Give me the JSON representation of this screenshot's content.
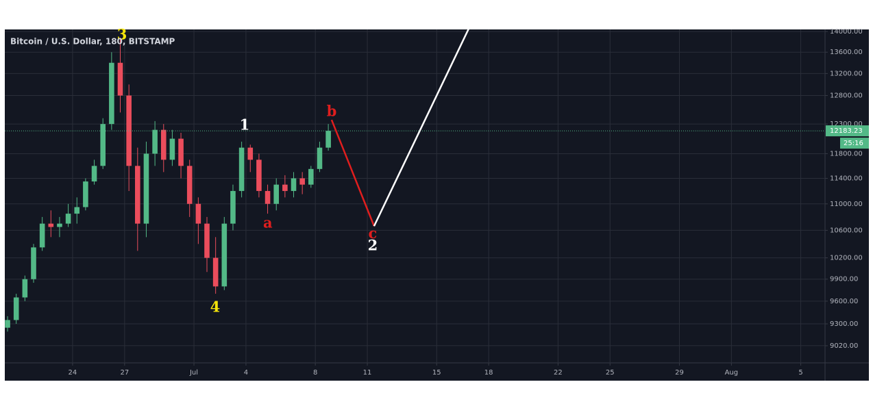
{
  "chart_data": {
    "type": "candlestick",
    "title": "Bitcoin / U.S. Dollar, 180, BITSTAMP",
    "log_scale": true,
    "grid": true,
    "up_color": "#53b987",
    "down_color": "#eb4d5c",
    "countdown": "25:16",
    "x": [
      20.25,
      20.75,
      21.25,
      21.75,
      22.25,
      22.75,
      23.25,
      23.75,
      24.25,
      24.75,
      25.25,
      25.75,
      26.25,
      26.75,
      27.25,
      27.75,
      28.25,
      28.75,
      29.25,
      29.75,
      30.25,
      30.75,
      31.25,
      31.75,
      32.25,
      32.75,
      33.25,
      33.75,
      34.25,
      34.75,
      35.25,
      35.75,
      36.25,
      36.75,
      37.25,
      37.75,
      38.25,
      38.75
    ],
    "open": [
      9250,
      9350,
      9650,
      9900,
      10350,
      10700,
      10650,
      10700,
      10850,
      10950,
      11350,
      11600,
      12300,
      13400,
      12800,
      11600,
      10700,
      11800,
      12200,
      11700,
      12050,
      11600,
      11000,
      10700,
      10200,
      9800,
      10700,
      11200,
      11900,
      11700,
      11200,
      11000,
      11300,
      11200,
      11400,
      11300,
      11550,
      11900
    ],
    "high": [
      9400,
      9700,
      9950,
      10400,
      10800,
      10900,
      10800,
      11000,
      11100,
      11400,
      11700,
      12400,
      13600,
      13880,
      13000,
      11900,
      12000,
      12350,
      12300,
      12200,
      12150,
      11700,
      11100,
      10800,
      10500,
      10800,
      11300,
      12000,
      11950,
      11800,
      11300,
      11400,
      11450,
      11500,
      11500,
      11600,
      12000,
      12300
    ],
    "low": [
      9200,
      9300,
      9600,
      9850,
      10300,
      10500,
      10500,
      10650,
      10700,
      10900,
      11300,
      11550,
      12200,
      12500,
      11200,
      10300,
      10500,
      11600,
      11500,
      11600,
      11400,
      10800,
      10400,
      10000,
      9700,
      9750,
      10600,
      11100,
      11500,
      11100,
      10850,
      10900,
      11100,
      11100,
      11150,
      11250,
      11500,
      11850
    ],
    "close": [
      9350,
      9650,
      9900,
      10350,
      10700,
      10650,
      10700,
      10850,
      10950,
      11350,
      11600,
      12300,
      13400,
      12800,
      11600,
      10700,
      11800,
      12200,
      11700,
      12050,
      11600,
      11000,
      10700,
      10200,
      9800,
      10700,
      11200,
      11900,
      11700,
      11200,
      11000,
      11300,
      11200,
      11400,
      11300,
      11550,
      11900,
      12183.23
    ],
    "xlim": [
      20.09,
      67.4
    ],
    "ylim": [
      8806,
      14040
    ],
    "xticks": [
      {
        "value": 24,
        "label": "24"
      },
      {
        "value": 27,
        "label": "27"
      },
      {
        "value": 31,
        "label": "Jul"
      },
      {
        "value": 34,
        "label": "4"
      },
      {
        "value": 38,
        "label": "8"
      },
      {
        "value": 41,
        "label": "11"
      },
      {
        "value": 45,
        "label": "15"
      },
      {
        "value": 48,
        "label": "18"
      },
      {
        "value": 52,
        "label": "22"
      },
      {
        "value": 55,
        "label": "25"
      },
      {
        "value": 59,
        "label": "29"
      },
      {
        "value": 62,
        "label": "Aug"
      },
      {
        "value": 66,
        "label": "5"
      }
    ],
    "yticks": [
      {
        "value": 14000,
        "label": "14000.00"
      },
      {
        "value": 13600,
        "label": "13600.00"
      },
      {
        "value": 13200,
        "label": "13200.00"
      },
      {
        "value": 12800,
        "label": "12800.00"
      },
      {
        "value": 12300,
        "label": "12300.00"
      },
      {
        "value": 11800,
        "label": "11800.00"
      },
      {
        "value": 11400,
        "label": "11400.00"
      },
      {
        "value": 11000,
        "label": "11000.00"
      },
      {
        "value": 10600,
        "label": "10600.00"
      },
      {
        "value": 10200,
        "label": "10200.00"
      },
      {
        "value": 9900,
        "label": "9900.00"
      },
      {
        "value": 9600,
        "label": "9600.00"
      },
      {
        "value": 9300,
        "label": "9300.00"
      },
      {
        "value": 9020,
        "label": "9020.00"
      }
    ],
    "wave_lines": [
      {
        "color": "#e01e1e",
        "x": [
          38.94,
          41.39
        ],
        "y": [
          12372,
          10663
        ]
      },
      {
        "color": "#ffffff",
        "x": [
          41.39,
          47.6
        ],
        "y": [
          10663,
          14600
        ]
      }
    ],
    "annotations": [
      {
        "text": "3",
        "color": "#f5e50a",
        "x": 26.85,
        "y": 13920
      },
      {
        "text": "1",
        "color": "#ffffff",
        "x": 33.92,
        "y": 12265
      },
      {
        "text": "4",
        "color": "#f5e50a",
        "x": 32.22,
        "y": 9507
      },
      {
        "text": "a",
        "color": "#e01e1e",
        "x": 35.26,
        "y": 10694
      },
      {
        "text": "b",
        "color": "#e01e1e",
        "x": 38.94,
        "y": 12502
      },
      {
        "text": "c",
        "color": "#e01e1e",
        "x": 41.31,
        "y": 10540
      },
      {
        "text": "2",
        "color": "#ffffff",
        "x": 41.31,
        "y": 10362
      }
    ]
  }
}
